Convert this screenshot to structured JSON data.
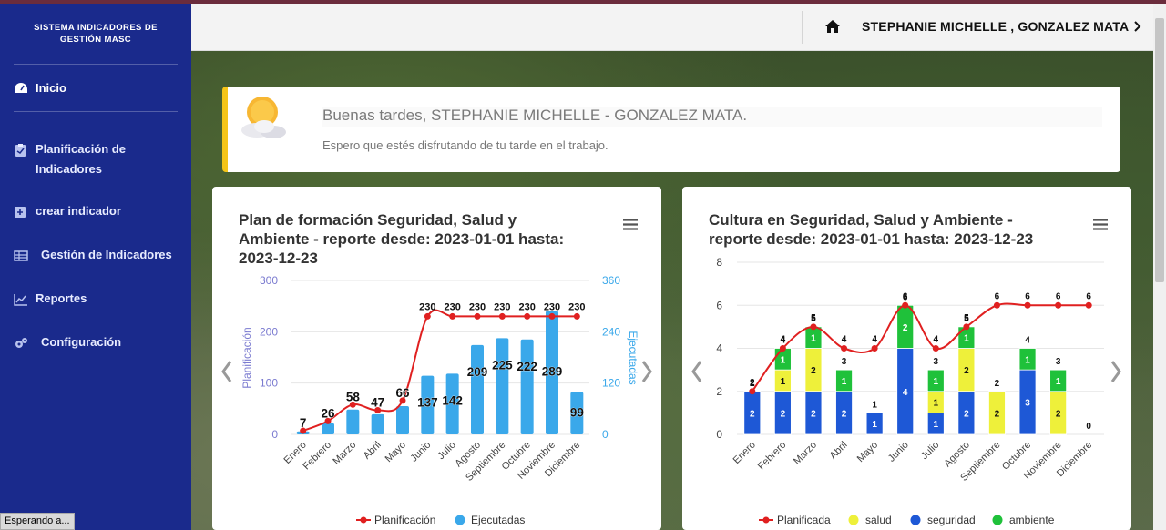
{
  "sidebar": {
    "brand_line1": "SISTEMA INDICADORES DE",
    "brand_line2": "GESTIÓN MASC",
    "items": [
      {
        "label": "Inicio",
        "icon": "dashboard-icon"
      },
      {
        "label": "Planificación de Indicadores",
        "icon": "clipboard-icon"
      },
      {
        "label": "crear indicador",
        "icon": "plus-square-icon"
      },
      {
        "label": "Gestión de Indicadores",
        "icon": "table-icon"
      },
      {
        "label": "Reportes",
        "icon": "chart-icon"
      },
      {
        "label": "Configuración",
        "icon": "gears-icon"
      }
    ]
  },
  "header": {
    "user": "STEPHANIE MICHELLE , GONZALEZ MATA"
  },
  "greeting": {
    "title": "Buenas tardes, STEPHANIE MICHELLE - GONZALEZ MATA.",
    "subtitle": "Espero que estés disfrutando de tu tarde en el trabajo."
  },
  "status_bar": "Esperando a...",
  "colors": {
    "sidebar": "#1a2a8c",
    "accent": "#f5c518",
    "planificacion": "#e02020",
    "ejecutadas": "#3aa8ea",
    "salud": "#eef03a",
    "seguridad": "#1e58d6",
    "ambiente": "#1fc13a"
  },
  "chart_data": [
    {
      "type": "bar",
      "title": "Plan de formación Seguridad, Salud y Ambiente - reporte desde: 2023-01-01 hasta: 2023-12-23",
      "categories": [
        "Enero",
        "Febrero",
        "Marzo",
        "Abril",
        "Mayo",
        "Junio",
        "Julio",
        "Agosto",
        "Septiembre",
        "Octubre",
        "Noviembre",
        "Diciembre"
      ],
      "series": [
        {
          "name": "Planificación",
          "kind": "line",
          "axis": "left",
          "values": [
            7,
            26,
            58,
            47,
            66,
            230,
            230,
            230,
            230,
            230,
            230,
            230
          ],
          "labels": [
            "",
            "",
            "",
            "",
            "",
            "230",
            "230",
            "230",
            "230",
            "230",
            "230",
            "230"
          ]
        },
        {
          "name": "Ejecutadas",
          "kind": "bar",
          "axis": "right",
          "values": [
            7,
            26,
            58,
            47,
            66,
            137,
            142,
            209,
            225,
            222,
            289,
            99
          ]
        }
      ],
      "ylabel_left": "Planificación",
      "ylabel_right": "Ejecutadas",
      "ylim_left": [
        0,
        300
      ],
      "yticks_left": [
        "0",
        "100",
        "200",
        "300"
      ],
      "ylim_right": [
        0,
        360
      ],
      "yticks_right": [
        "0",
        "120",
        "240",
        "360"
      ],
      "legend": [
        "Planificación",
        "Ejecutadas"
      ],
      "legend_position": "bottom-center"
    },
    {
      "type": "bar",
      "title": "Cultura en Seguridad, Salud y Ambiente - reporte desde: 2023-01-01 hasta: 2023-12-23",
      "categories": [
        "Enero",
        "Febrero",
        "Marzo",
        "Abril",
        "Mayo",
        "Junio",
        "Julio",
        "Agosto",
        "Septiembre",
        "Octubre",
        "Noviembre",
        "Diciembre"
      ],
      "series": [
        {
          "name": "Planificada",
          "kind": "line",
          "values": [
            2,
            4,
            5,
            4,
            4,
            6,
            4,
            5,
            6,
            6,
            6,
            6
          ]
        },
        {
          "name": "salud",
          "kind": "stacked-bar",
          "values": [
            0,
            1,
            2,
            0,
            0,
            0,
            1,
            2,
            2,
            0,
            2,
            0
          ]
        },
        {
          "name": "seguridad",
          "kind": "stacked-bar",
          "values": [
            2,
            2,
            2,
            2,
            1,
            4,
            1,
            2,
            0,
            3,
            0,
            0
          ]
        },
        {
          "name": "ambiente",
          "kind": "stacked-bar",
          "values": [
            0,
            1,
            1,
            1,
            0,
            2,
            1,
            1,
            0,
            1,
            1,
            0
          ]
        }
      ],
      "totals": [
        "2",
        "4",
        "5",
        "3",
        "1",
        "6",
        "3",
        "5",
        "2",
        "4",
        "3",
        "0"
      ],
      "ylim": [
        0,
        8
      ],
      "yticks": [
        "0",
        "2",
        "4",
        "6",
        "8"
      ],
      "legend": [
        "Planificada",
        "salud",
        "seguridad",
        "ambiente"
      ],
      "legend_position": "bottom-center"
    }
  ]
}
